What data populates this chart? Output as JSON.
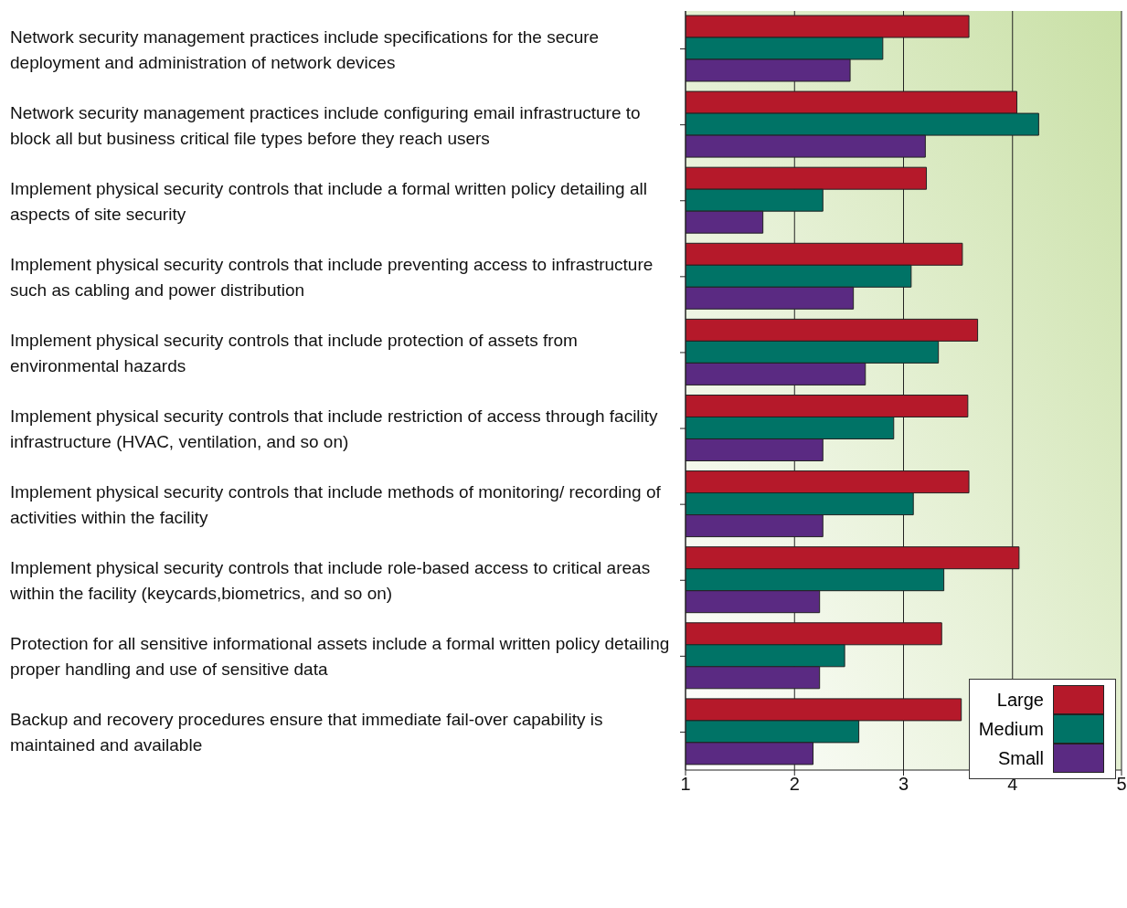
{
  "chart_data": {
    "type": "bar",
    "orientation": "horizontal",
    "categories": [
      "Network security management practices include specifications for the secure deployment and administration of network devices",
      "Network security management practices include configuring email infrastructure to block all but business critical file types before they reach users",
      "Implement physical security controls that include a formal written policy detailing all aspects of site security",
      "Implement physical security controls that include preventing access to infrastructure such as cabling and power distribution",
      "Implement physical security controls that include protection of assets from environmental hazards",
      "Implement physical security controls that include restriction of access through facility infrastructure (HVAC, ventilation, and so on)",
      "Implement physical security controls that include methods of monitoring/ recording of activities within the facility",
      "Implement physical security controls that include role-based access to critical areas within the facility (keycards,biometrics, and so on)",
      "Protection for all sensitive informational assets include a formal written policy detailing proper handling and use of sensitive data",
      "Backup and recovery procedures ensure that immediate fail-over capability is maintained and available"
    ],
    "series": [
      {
        "name": "Large",
        "color": "#b5192a",
        "values": [
          3.6,
          4.04,
          3.21,
          3.54,
          3.68,
          3.59,
          3.6,
          4.06,
          3.35,
          3.53
        ]
      },
      {
        "name": "Medium",
        "color": "#007366",
        "values": [
          2.81,
          4.24,
          2.26,
          3.07,
          3.32,
          2.91,
          3.09,
          3.37,
          2.46,
          2.59
        ]
      },
      {
        "name": "Small",
        "color": "#5a2a82",
        "values": [
          2.51,
          3.2,
          1.71,
          2.54,
          2.65,
          2.26,
          2.26,
          2.23,
          2.23,
          2.17
        ]
      }
    ],
    "xlim": [
      1,
      5
    ],
    "xticks": [
      1,
      2,
      3,
      4,
      5
    ],
    "grid": "x",
    "legend": "bottom right"
  }
}
